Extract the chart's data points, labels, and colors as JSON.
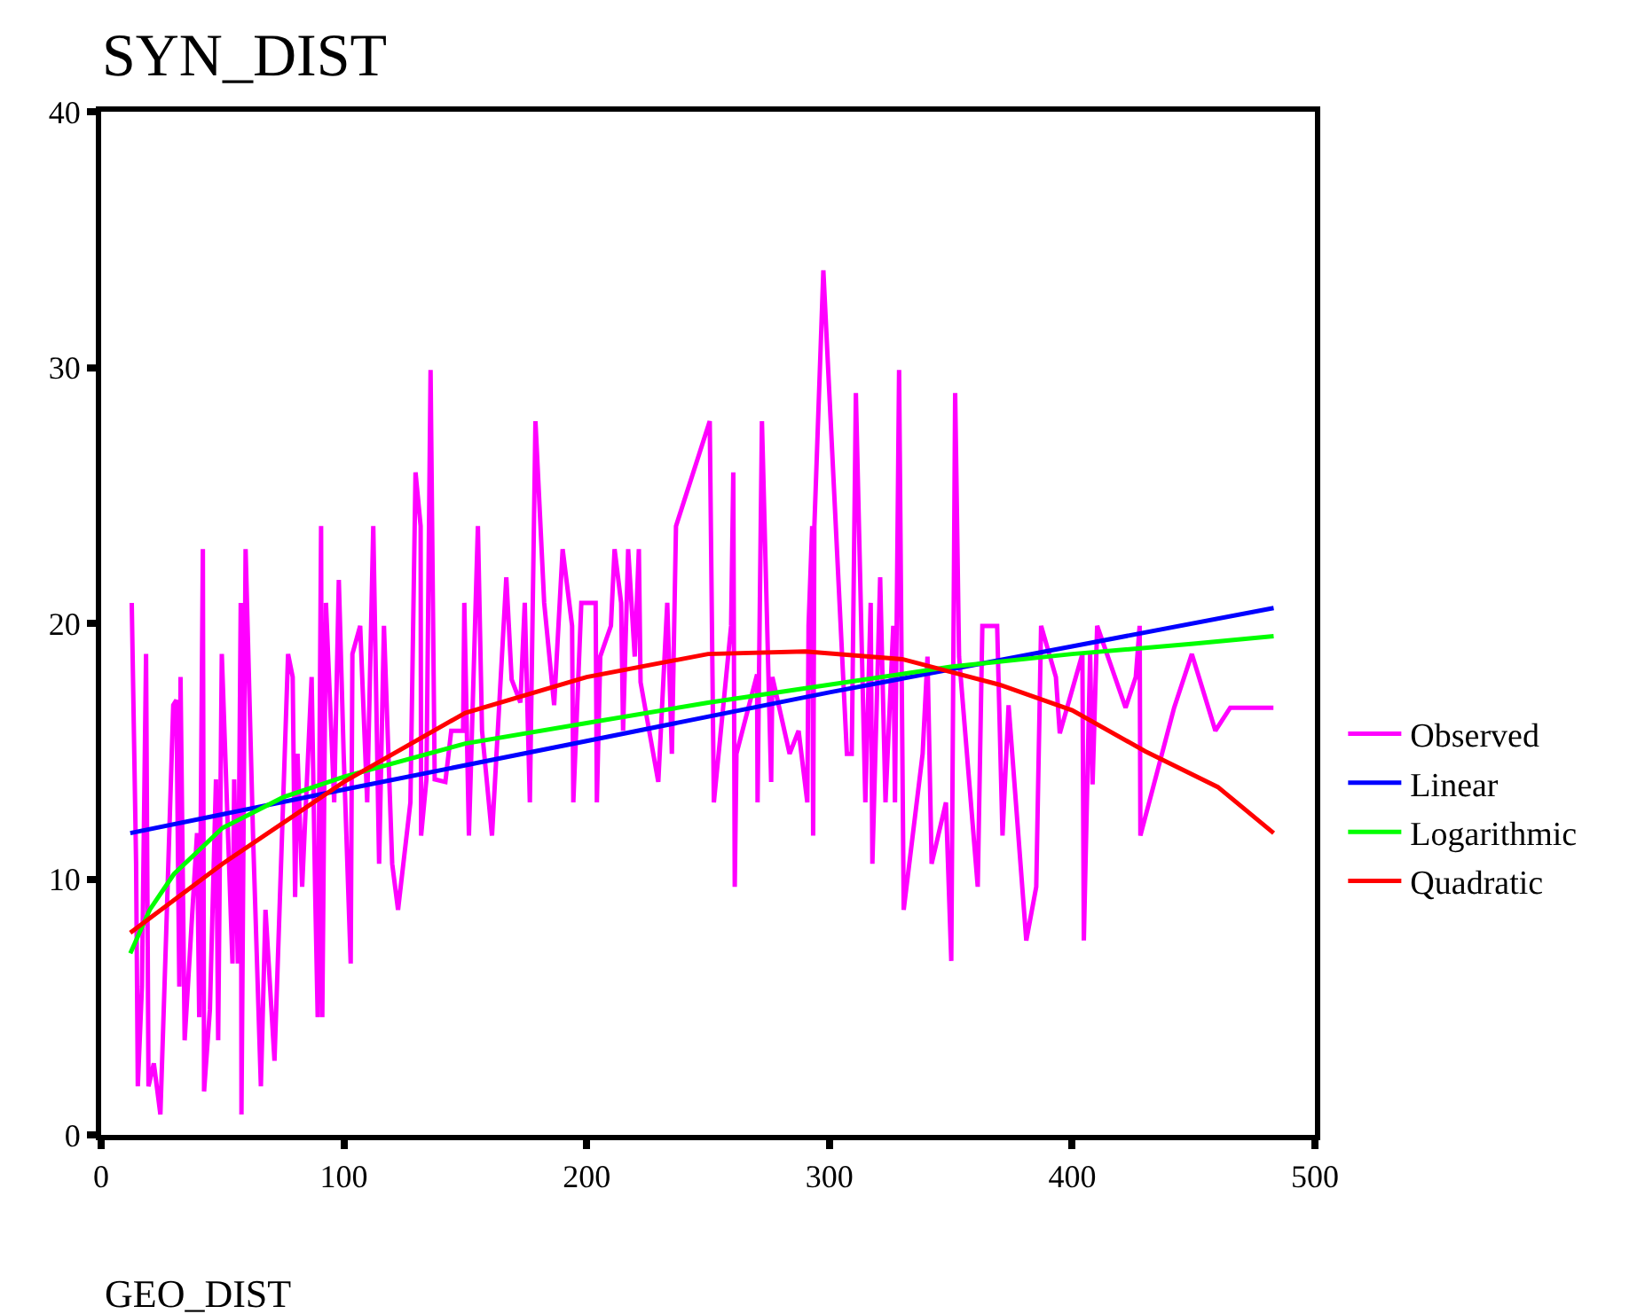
{
  "chart_data": {
    "type": "line",
    "title": "SYN_DIST",
    "xlabel": "GEO_DIST",
    "xlim": [
      0,
      500
    ],
    "xticks": [
      0,
      100,
      200,
      300,
      400,
      500
    ],
    "ylim": [
      0,
      40
    ],
    "yticks": [
      0,
      10,
      20,
      30,
      40
    ],
    "grid": false,
    "legend": "right",
    "line_style": "solid",
    "series": [
      {
        "name": "Observed",
        "color": "#ff00ff",
        "x": [
          12.6,
          14.4,
          15.1,
          16.8,
          18.5,
          19.5,
          21.7,
          24.4,
          26.8,
          29.7,
          31,
          32.2,
          32.7,
          34.4,
          39.5,
          40.4,
          41.9,
          42.4,
          44.8,
          47.3,
          48.2,
          49.7,
          54.1,
          54.8,
          56.3,
          57.5,
          57.8,
          59.5,
          62.6,
          65.8,
          67.7,
          71.4,
          77,
          78.9,
          79.9,
          80.9,
          82.8,
          86.7,
          88.2,
          89.2,
          90.6,
          91.1,
          92.6,
          96,
          97.9,
          99.9,
          102.8,
          103.5,
          106.7,
          109.6,
          112.1,
          114.5,
          116.5,
          119.9,
          122.3,
          127.4,
          129.5,
          131.6,
          131.8,
          134,
          135.7,
          137.4,
          141.8,
          144.2,
          149.1,
          149.6,
          151.5,
          155.2,
          156.9,
          161,
          166.9,
          169.1,
          172.7,
          174.5,
          176.6,
          178.9,
          182.5,
          186.6,
          190.1,
          194,
          194.5,
          197.8,
          203.7,
          204.2,
          205.6,
          210,
          211.5,
          214.2,
          215,
          217.1,
          219.8,
          221.5,
          222.2,
          229.5,
          233.2,
          235.1,
          236.8,
          250.7,
          252.4,
          259.5,
          260.4,
          261,
          261.7,
          270.2,
          270.4,
          272.2,
          276,
          276.5,
          283.6,
          287.3,
          290.9,
          291.4,
          292.9,
          293.3,
          293.8,
          297.5,
          307.2,
          309.2,
          310.9,
          314.8,
          317,
          317.7,
          320.9,
          323.1,
          326.3,
          327,
          328.7,
          330.6,
          338.4,
          340.4,
          342.1,
          348,
          350.2,
          351.8,
          353.4,
          361.1,
          363,
          369.1,
          371.3,
          373.8,
          381.1,
          385.2,
          387.2,
          393.3,
          394.9,
          404.2,
          404.8,
          407.4,
          408.4,
          410.3,
          422,
          426.2,
          427.8,
          428.1,
          442,
          449.3,
          459,
          465.1,
          482.9
        ],
        "values": [
          20.8,
          10.6,
          1.9,
          5.8,
          18.8,
          1.9,
          2.8,
          0.8,
          7.9,
          16.8,
          17,
          5.8,
          17.9,
          3.7,
          11.8,
          4.6,
          22.9,
          1.7,
          4.9,
          13.9,
          3.7,
          18.8,
          6.7,
          13.9,
          6.7,
          20.8,
          0.8,
          22.9,
          11.6,
          1.9,
          8.8,
          2.9,
          18.8,
          17.9,
          9.3,
          14.9,
          9.7,
          17.9,
          9.3,
          4.6,
          23.8,
          4.6,
          20.8,
          13,
          21.7,
          14.9,
          6.7,
          18.8,
          19.9,
          13,
          23.8,
          10.6,
          19.9,
          10.6,
          8.8,
          13,
          25.9,
          23.8,
          11.7,
          13.9,
          29.9,
          13.9,
          13.8,
          15.8,
          15.8,
          20.8,
          11.7,
          23.8,
          15.8,
          11.7,
          21.8,
          17.8,
          16.9,
          20.8,
          13,
          27.9,
          20.8,
          16.8,
          22.9,
          19.9,
          13,
          20.8,
          20.8,
          13,
          18.7,
          19.9,
          22.9,
          20.8,
          15.8,
          22.9,
          18.7,
          22.9,
          17.7,
          13.8,
          20.8,
          14.9,
          23.8,
          27.9,
          13,
          19.9,
          25.9,
          9.7,
          14.9,
          18,
          13,
          27.9,
          13.8,
          17.9,
          14.9,
          15.8,
          13,
          19.9,
          23.8,
          11.7,
          23.8,
          33.8,
          14.9,
          14.9,
          29,
          13,
          20.8,
          10.6,
          21.8,
          13,
          19.9,
          13,
          29.9,
          8.8,
          14.9,
          18.7,
          10.6,
          13,
          6.8,
          29,
          18.7,
          9.7,
          19.9,
          19.9,
          11.7,
          16.8,
          7.6,
          9.7,
          19.9,
          17.9,
          15.7,
          18.8,
          7.6,
          18.8,
          13.7,
          19.9,
          16.7,
          17.9,
          19.9,
          11.7,
          16.7,
          18.8,
          15.8,
          16.7,
          16.7
        ]
      },
      {
        "name": "Linear",
        "color": "#0000ff",
        "x": [
          12,
          100,
          200,
          300,
          400,
          483
        ],
        "values": [
          11.8,
          13.5,
          15.4,
          17.3,
          19.1,
          20.6
        ]
      },
      {
        "name": "Logarithmic",
        "color": "#00ff00",
        "x": [
          12,
          20,
          30,
          50,
          75,
          100,
          150,
          200,
          250,
          300,
          350,
          400,
          450,
          483
        ],
        "values": [
          7.1,
          8.8,
          10.2,
          12,
          13.2,
          14,
          15.3,
          16.1,
          16.9,
          17.6,
          18.3,
          18.8,
          19.2,
          19.5
        ]
      },
      {
        "name": "Quadratic",
        "color": "#ff0000",
        "x": [
          12,
          50,
          100,
          150,
          200,
          250,
          290,
          330,
          370,
          400,
          430,
          460,
          483
        ],
        "values": [
          7.9,
          10.6,
          13.8,
          16.5,
          17.9,
          18.8,
          18.9,
          18.6,
          17.6,
          16.6,
          15,
          13.6,
          11.8
        ]
      }
    ]
  }
}
